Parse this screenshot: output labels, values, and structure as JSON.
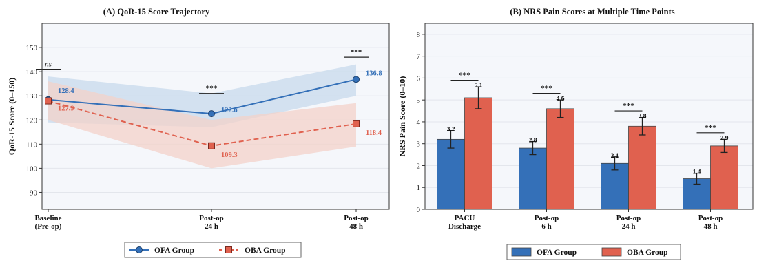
{
  "colors": {
    "ofa": "#3470b8",
    "oba": "#e0614f",
    "ofa_band": "#c7d9ec",
    "oba_band": "#f3d1c9",
    "panel_bg": "#f5f7fb",
    "grid": "#e3e6ec",
    "axis": "#333333",
    "sig": "#222222"
  },
  "chart_data": [
    {
      "type": "line",
      "title": "(A) QoR-15 Score Trajectory",
      "xlabel": "",
      "ylabel": "QoR-15 Score (0–150)",
      "categories": [
        [
          "Baseline",
          "(Pre-op)"
        ],
        [
          "Post-op",
          "24 h"
        ],
        [
          "Post-op",
          "48 h"
        ]
      ],
      "ylim": [
        83,
        160
      ],
      "yticks": [
        90,
        100,
        110,
        120,
        130,
        140,
        150
      ],
      "grid": true,
      "series": [
        {
          "name": "OFA Group",
          "color_key": "ofa",
          "marker": "circle",
          "values": [
            128.4,
            122.6,
            136.8
          ],
          "value_labels": [
            "128.4",
            "122.6",
            "136.8"
          ],
          "band": {
            "lower": [
              119,
              117,
              130
            ],
            "upper": [
              138,
              131,
              143
            ]
          }
        },
        {
          "name": "OBA Group",
          "color_key": "oba",
          "marker": "square",
          "values": [
            127.9,
            109.3,
            118.4
          ],
          "value_labels": [
            "127.9",
            "109.3",
            "118.4"
          ],
          "band": {
            "lower": [
              120,
              100,
              109
            ],
            "upper": [
              136,
              120,
              127
            ]
          }
        }
      ],
      "significance": [
        {
          "label": "ns",
          "italic": true,
          "level": 141
        },
        {
          "label": "***",
          "italic": false,
          "level": 131
        },
        {
          "label": "***",
          "italic": false,
          "level": 146
        }
      ],
      "legend": {
        "placement": "bottom",
        "entries": [
          "OFA Group",
          "OBA Group"
        ]
      }
    },
    {
      "type": "bar",
      "title": "(B) NRS Pain Scores at Multiple Time Points",
      "xlabel": "",
      "ylabel": "NRS Pain Score (0–10)",
      "categories": [
        [
          "PACU",
          "Discharge"
        ],
        [
          "Post-op",
          "6 h"
        ],
        [
          "Post-op",
          "24 h"
        ],
        [
          "Post-op",
          "48 h"
        ]
      ],
      "ylim": [
        0,
        8.5
      ],
      "yticks": [
        0,
        1,
        2,
        3,
        4,
        5,
        6,
        7,
        8
      ],
      "grid": true,
      "series": [
        {
          "name": "OFA Group",
          "color_key": "ofa",
          "values": [
            3.2,
            2.8,
            2.1,
            1.4
          ],
          "errors": [
            0.4,
            0.3,
            0.3,
            0.25
          ],
          "value_labels": [
            "3.2",
            "2.8",
            "2.1",
            "1.4"
          ]
        },
        {
          "name": "OBA Group",
          "color_key": "oba",
          "values": [
            5.1,
            4.6,
            3.8,
            2.9
          ],
          "errors": [
            0.5,
            0.4,
            0.4,
            0.3
          ],
          "value_labels": [
            "5.1",
            "4.6",
            "3.8",
            "2.9"
          ]
        }
      ],
      "significance": [
        {
          "label": "***",
          "level": 5.9
        },
        {
          "label": "***",
          "level": 5.3
        },
        {
          "label": "***",
          "level": 4.5
        },
        {
          "label": "***",
          "level": 3.5
        }
      ],
      "legend": {
        "placement": "bottom",
        "entries": [
          "OFA Group",
          "OBA Group"
        ]
      }
    }
  ]
}
